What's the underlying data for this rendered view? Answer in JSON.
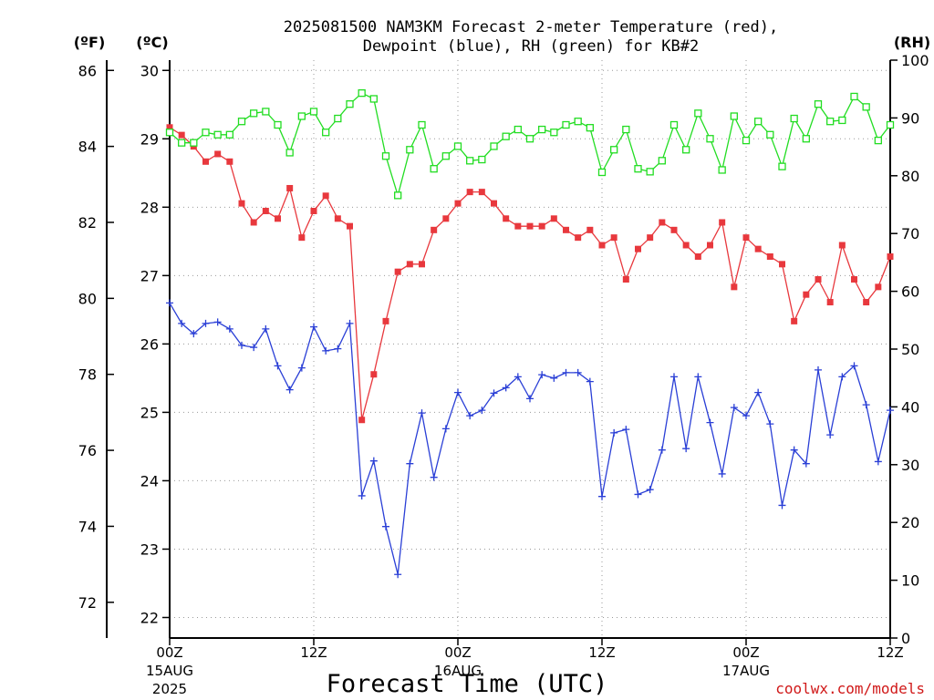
{
  "chart_data": {
    "type": "line",
    "title_line1": "2025081500 NAM3KM Forecast 2-meter Temperature (red),",
    "title_line2": "Dewpoint (blue), RH (green) for KB#2",
    "xlabel": "Forecast Time (UTC)",
    "credit": "coolwx.com/models",
    "units": {
      "fahrenheit": "(ºF)",
      "celsius": "(ºC)",
      "rh": "(RH)"
    },
    "x_range_hours": [
      0,
      60
    ],
    "x_ticks": [
      {
        "hour": 0,
        "label": "00Z",
        "date": "15AUG",
        "year": "2025"
      },
      {
        "hour": 12,
        "label": "12Z",
        "date": "",
        "year": ""
      },
      {
        "hour": 24,
        "label": "00Z",
        "date": "16AUG",
        "year": ""
      },
      {
        "hour": 36,
        "label": "12Z",
        "date": "",
        "year": ""
      },
      {
        "hour": 48,
        "label": "00Z",
        "date": "17AUG",
        "year": ""
      },
      {
        "hour": 60,
        "label": "12Z",
        "date": "",
        "year": ""
      }
    ],
    "celsius_axis": {
      "min": 21.7,
      "max": 30.15,
      "ticks": [
        22,
        23,
        24,
        25,
        26,
        27,
        28,
        29,
        30
      ]
    },
    "fahrenheit_axis": {
      "ticks": [
        72,
        74,
        76,
        78,
        80,
        82,
        84,
        86
      ]
    },
    "rh_axis": {
      "min": 0,
      "max": 100,
      "ticks": [
        0,
        10,
        20,
        30,
        40,
        50,
        60,
        70,
        80,
        90,
        100
      ]
    },
    "grid": true,
    "colors": {
      "temperature": "#e8383d",
      "dewpoint": "#2a3fd6",
      "rh": "#22dd22"
    },
    "series": [
      {
        "key": "temperature",
        "unit": "F",
        "values": [
          84.5,
          84.3,
          84.0,
          83.6,
          83.8,
          83.6,
          82.5,
          82.0,
          82.3,
          82.1,
          82.9,
          81.6,
          82.3,
          82.7,
          82.1,
          81.9,
          76.8,
          78.0,
          79.4,
          80.7,
          80.9,
          80.9,
          81.8,
          82.1,
          82.5,
          82.8,
          82.8,
          82.5,
          82.1,
          81.9,
          81.9,
          81.9,
          82.1,
          81.8,
          81.6,
          81.8,
          81.4,
          81.6,
          80.5,
          81.3,
          81.6,
          82.0,
          81.8,
          81.4,
          81.1,
          81.4,
          82.0,
          80.3,
          81.6,
          81.3,
          81.1,
          80.9,
          79.4,
          80.1,
          80.5,
          79.9,
          81.4,
          80.5,
          79.9,
          80.3,
          81.1
        ]
      },
      {
        "key": "dewpoint",
        "unit": "C",
        "values": [
          26.6,
          26.3,
          26.15,
          26.3,
          26.32,
          26.22,
          25.98,
          25.95,
          26.22,
          25.68,
          25.33,
          25.65,
          26.25,
          25.9,
          25.93,
          26.3,
          23.78,
          24.29,
          23.33,
          22.63,
          24.25,
          24.99,
          24.05,
          24.76,
          25.29,
          24.95,
          25.03,
          25.28,
          25.36,
          25.52,
          25.2,
          25.55,
          25.5,
          25.58,
          25.58,
          25.45,
          23.77,
          24.7,
          24.75,
          23.8,
          23.87,
          24.45,
          25.52,
          24.47,
          25.52,
          24.85,
          24.1,
          25.07,
          24.95,
          25.29,
          24.83,
          23.64,
          24.45,
          24.25,
          25.62,
          24.67,
          25.52,
          25.68,
          25.11,
          24.28,
          25.03
        ]
      },
      {
        "key": "rh",
        "unit": "%",
        "values": [
          87.5,
          85.7,
          85.7,
          87.5,
          87.1,
          87.1,
          89.4,
          90.8,
          91.1,
          88.8,
          84.0,
          90.3,
          91.1,
          87.5,
          89.9,
          92.4,
          94.3,
          93.3,
          83.4,
          76.6,
          84.5,
          88.8,
          81.2,
          83.4,
          85.1,
          82.6,
          82.8,
          85.1,
          86.8,
          88.0,
          86.4,
          88.0,
          87.5,
          88.8,
          89.4,
          88.3,
          80.6,
          84.5,
          88.0,
          81.2,
          80.7,
          82.6,
          88.8,
          84.5,
          90.8,
          86.4,
          81.0,
          90.3,
          86.1,
          89.4,
          87.1,
          81.6,
          89.9,
          86.4,
          92.4,
          89.4,
          89.6,
          93.7,
          91.9,
          86.1,
          88.8
        ]
      }
    ]
  }
}
